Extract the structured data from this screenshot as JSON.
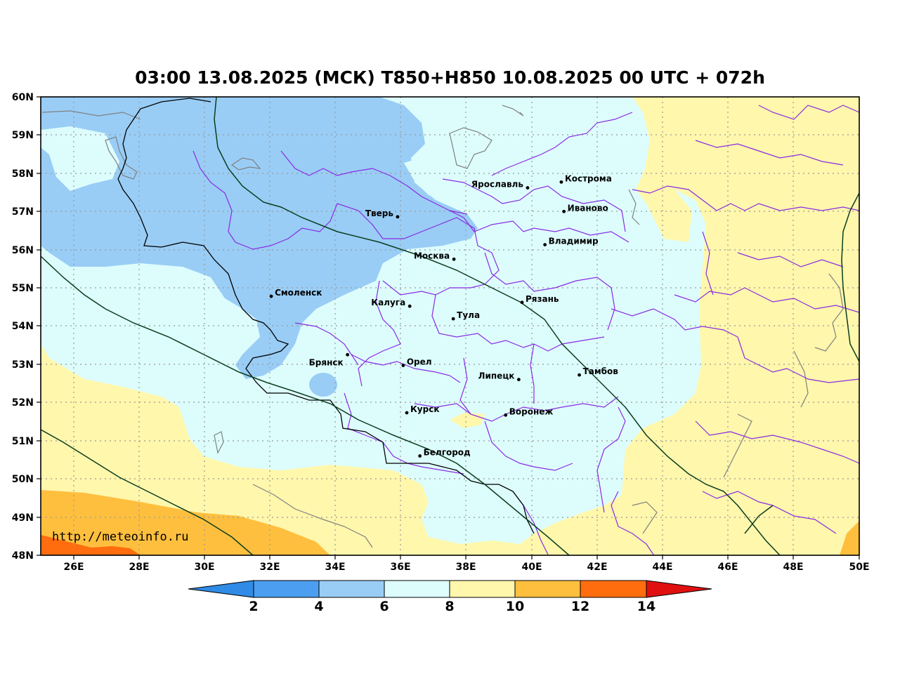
{
  "title": "03:00 13.08.2025 (МСК) T850+H850 10.08.2025 00 UTC + 072h",
  "watermark": "http://meteoinfo.ru",
  "lat_labels": [
    "60N",
    "59N",
    "58N",
    "57N",
    "56N",
    "55N",
    "54N",
    "53N",
    "52N",
    "51N",
    "50N",
    "49N",
    "48N"
  ],
  "lon_labels": [
    "26E",
    "28E",
    "30E",
    "32E",
    "34E",
    "36E",
    "38E",
    "40E",
    "42E",
    "44E",
    "46E",
    "48E",
    "50E"
  ],
  "cities": [
    {
      "name": "Кострома",
      "lon": 40.9,
      "lat": 57.77
    },
    {
      "name": "Ярославль",
      "lon": 39.87,
      "lat": 57.62
    },
    {
      "name": "Иваново",
      "lon": 40.98,
      "lat": 57.0
    },
    {
      "name": "Тверь",
      "lon": 35.9,
      "lat": 56.86
    },
    {
      "name": "Владимир",
      "lon": 40.4,
      "lat": 56.13
    },
    {
      "name": "Москва",
      "lon": 37.62,
      "lat": 55.75
    },
    {
      "name": "Смоленск",
      "lon": 32.04,
      "lat": 54.78
    },
    {
      "name": "Рязань",
      "lon": 39.7,
      "lat": 54.62
    },
    {
      "name": "Калуга",
      "lon": 36.27,
      "lat": 54.52
    },
    {
      "name": "Тула",
      "lon": 37.6,
      "lat": 54.19
    },
    {
      "name": "Брянск",
      "lon": 34.37,
      "lat": 53.25
    },
    {
      "name": "Орел",
      "lon": 36.07,
      "lat": 52.97
    },
    {
      "name": "Тамбов",
      "lon": 41.45,
      "lat": 52.72
    },
    {
      "name": "Липецк",
      "lon": 39.6,
      "lat": 52.6
    },
    {
      "name": "Курск",
      "lon": 36.18,
      "lat": 51.73
    },
    {
      "name": "Воронеж",
      "lon": 39.2,
      "lat": 51.67
    },
    {
      "name": "Белгород",
      "lon": 36.58,
      "lat": 50.6
    }
  ],
  "colorbar": {
    "ticks": [
      "2",
      "4",
      "6",
      "8",
      "10",
      "12",
      "14"
    ],
    "colors": [
      "#2f8be6",
      "#4c9ff0",
      "#99cdf6",
      "#ddfdfd",
      "#fff7ac",
      "#ffbf3e",
      "#ff6d0e",
      "#e01010"
    ]
  },
  "extent": {
    "lon_min": 25,
    "lon_max": 50,
    "lat_min": 48,
    "lat_max": 60
  }
}
